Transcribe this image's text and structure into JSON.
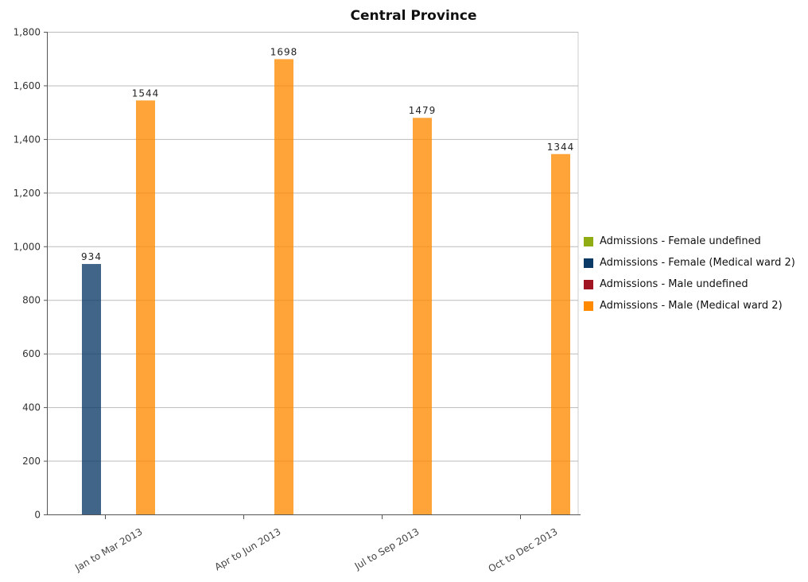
{
  "chart_data": {
    "type": "bar",
    "title": "Central Province",
    "categories": [
      "Jan to Mar 2013",
      "Apr to Jun 2013",
      "Jul to Sep 2013",
      "Oct to Dec 2013"
    ],
    "series": [
      {
        "name": "Admissions - Female undefined",
        "color": "#8fac12",
        "values": [
          null,
          null,
          null,
          null
        ]
      },
      {
        "name": "Admissions - Female (Medical ward 2)",
        "color": "#0c3a66",
        "values": [
          934,
          null,
          null,
          null
        ]
      },
      {
        "name": "Admissions - Male undefined",
        "color": "#a01422",
        "values": [
          null,
          null,
          null,
          null
        ]
      },
      {
        "name": "Admissions - Male (Medical ward 2)",
        "color": "#ff8a00",
        "values": [
          1544,
          1698,
          1479,
          1344
        ]
      }
    ],
    "ylim": [
      0,
      1800
    ],
    "yticks": [
      0,
      200,
      400,
      600,
      800,
      1000,
      1200,
      1400,
      1600,
      1800
    ],
    "ytick_labels": [
      "0",
      "200",
      "400",
      "600",
      "800",
      "1,000",
      "1,200",
      "1,400",
      "1,600",
      "1,800"
    ],
    "grid": true,
    "legend": "right",
    "xlabel": "",
    "ylabel": ""
  }
}
